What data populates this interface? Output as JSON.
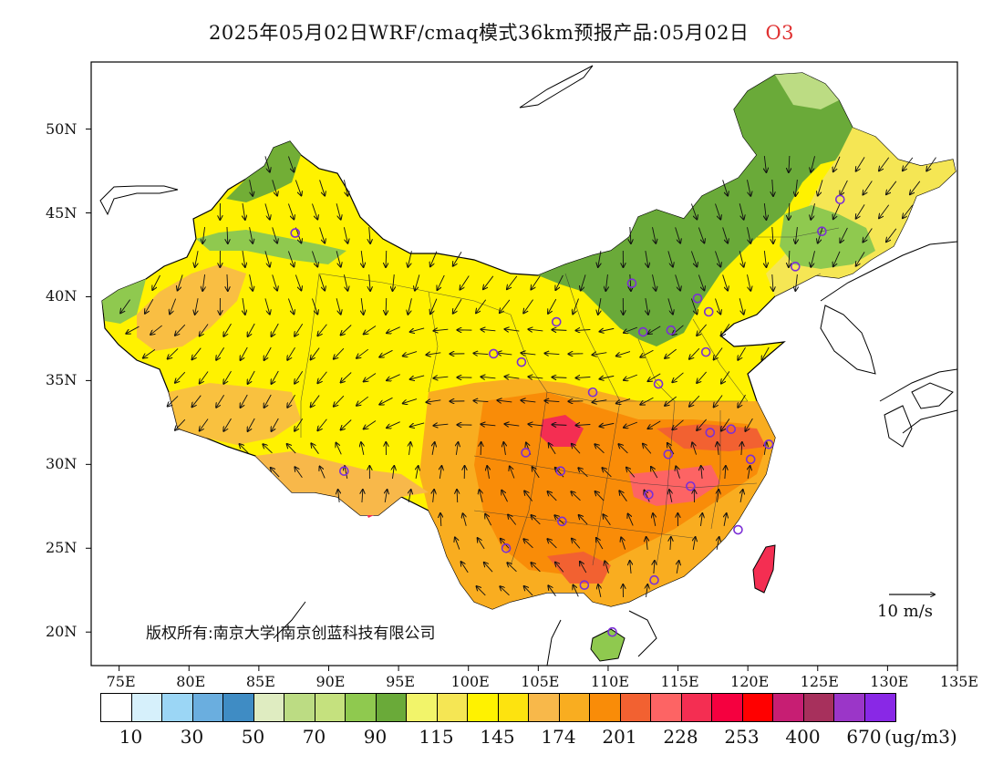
{
  "title": {
    "main": "2025年05月02日WRF/cmaq模式36km预报产品:05月02日",
    "species": "O3"
  },
  "axes": {
    "lat_labels": [
      "50N",
      "45N",
      "40N",
      "35N",
      "30N",
      "25N",
      "20N"
    ],
    "lon_labels": [
      "75E",
      "80E",
      "85E",
      "90E",
      "95E",
      "100E",
      "105E",
      "110E",
      "115E",
      "120E",
      "125E",
      "130E",
      "135E"
    ]
  },
  "copyright": "版权所有:南京大学|南京创蓝科技有限公司",
  "wind_reference": "10 m/s",
  "colorbar": {
    "colors": [
      "#ffffff",
      "#d6f0fb",
      "#9bd6f5",
      "#6aaedf",
      "#3f8cc4",
      "#dfecc1",
      "#bcdc83",
      "#c5e17e",
      "#8fc94f",
      "#6aaa39",
      "#f2f46a",
      "#f5e654",
      "#fff200",
      "#fde30f",
      "#f8b84a",
      "#f9ad20",
      "#f98c08",
      "#f26131",
      "#fd6464",
      "#f42e52",
      "#f5003f",
      "#ff0000",
      "#c71e73",
      "#a7305c",
      "#9b36c8",
      "#8928e6"
    ],
    "labels": [
      "10",
      "30",
      "50",
      "70",
      "90",
      "115",
      "145",
      "174",
      "201",
      "228",
      "253",
      "400",
      "670"
    ],
    "units": "(ug/m3)"
  },
  "map": {
    "lon_range": [
      73.0,
      135.0
    ],
    "lat_range": [
      18.0,
      54.0
    ],
    "land_color": "#ffffff",
    "sea_color": "#ffffff",
    "city_markers": [
      [
        87.6,
        43.8
      ],
      [
        126.6,
        45.8
      ],
      [
        125.3,
        43.9
      ],
      [
        123.4,
        41.8
      ],
      [
        111.7,
        40.8
      ],
      [
        116.4,
        39.9
      ],
      [
        117.2,
        39.1
      ],
      [
        112.5,
        37.9
      ],
      [
        114.5,
        38.0
      ],
      [
        117.0,
        36.7
      ],
      [
        106.3,
        38.5
      ],
      [
        101.8,
        36.6
      ],
      [
        103.8,
        36.1
      ],
      [
        108.9,
        34.3
      ],
      [
        113.6,
        34.8
      ],
      [
        118.8,
        32.1
      ],
      [
        117.3,
        31.9
      ],
      [
        121.5,
        31.2
      ],
      [
        120.2,
        30.3
      ],
      [
        114.3,
        30.6
      ],
      [
        104.1,
        30.7
      ],
      [
        106.6,
        29.6
      ],
      [
        112.9,
        28.2
      ],
      [
        115.9,
        28.7
      ],
      [
        119.3,
        26.1
      ],
      [
        106.7,
        26.6
      ],
      [
        102.7,
        25.0
      ],
      [
        108.3,
        22.8
      ],
      [
        113.3,
        23.1
      ],
      [
        110.3,
        20.0
      ],
      [
        91.1,
        29.6
      ]
    ]
  }
}
